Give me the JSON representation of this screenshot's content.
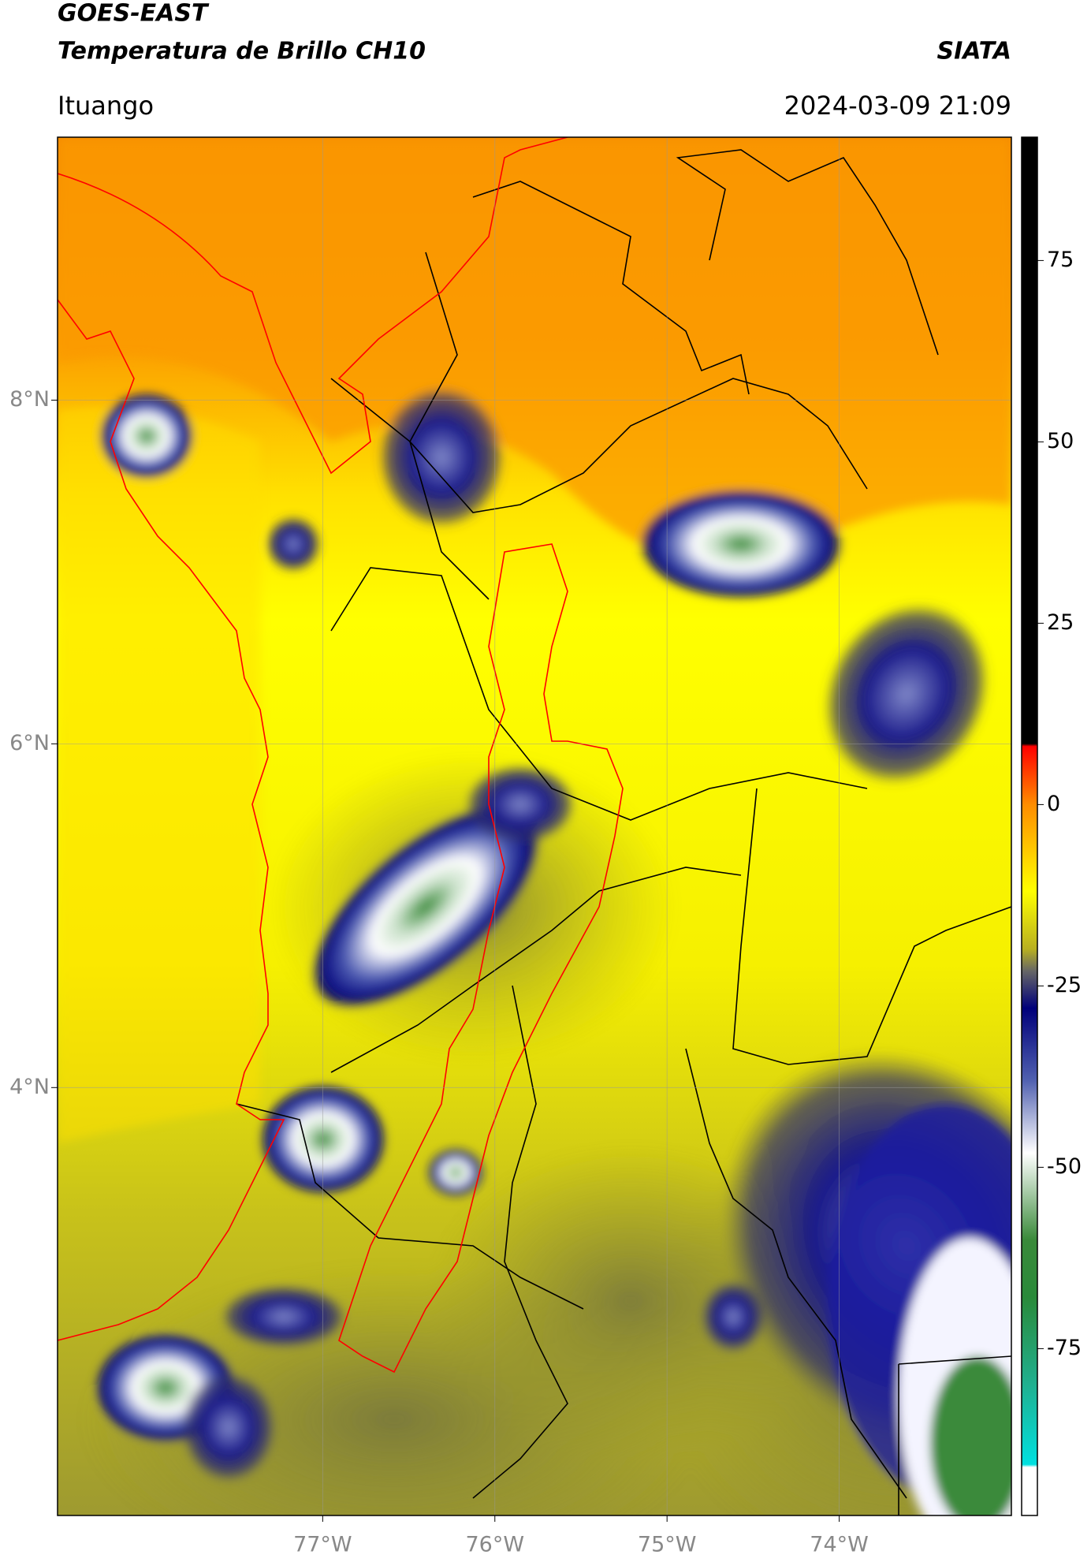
{
  "header": {
    "title": "GOES-EAST",
    "subtitle": "Temperatura de Brillo CH10",
    "brand": "SIATA",
    "location": "Ituango",
    "datetime": "2024-03-09 21:09"
  },
  "map": {
    "xlim": [
      -78.54,
      -73.0
    ],
    "ylim": [
      1.51,
      9.53
    ],
    "xticks": [
      {
        "value": -77,
        "label": "77°W"
      },
      {
        "value": -76,
        "label": "76°W"
      },
      {
        "value": -75,
        "label": "75°W"
      },
      {
        "value": -74,
        "label": "74°W"
      }
    ],
    "yticks": [
      {
        "value": 8,
        "label": "8°N"
      },
      {
        "value": 6,
        "label": "6°N"
      },
      {
        "value": 4,
        "label": "4°N"
      }
    ],
    "grid": true
  },
  "colorbar": {
    "lim": [
      -98,
      92
    ],
    "ticks": [
      75,
      50,
      25,
      0,
      -25,
      -50,
      -75
    ]
  }
}
